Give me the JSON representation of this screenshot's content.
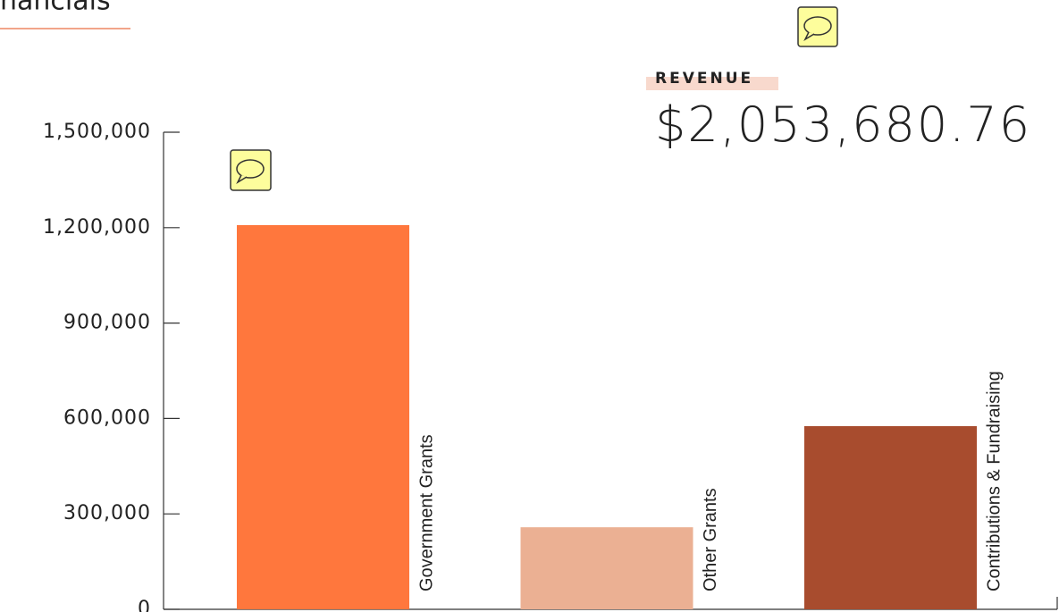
{
  "header": {
    "title": "nancials"
  },
  "revenue": {
    "label": "REVENUE",
    "amount": "$2,053,680.76"
  },
  "chart_data": {
    "type": "bar",
    "categories": [
      "Government Grants",
      "Other Grants",
      "Contributions & Fundraising"
    ],
    "values": [
      1208000,
      258000,
      576000
    ],
    "colors": [
      "#ff773d",
      "#ebb093",
      "#a84c2e"
    ],
    "ylim": [
      0,
      1500000
    ],
    "yticks": [
      0,
      {
        "value": 300000,
        "label": "300,000"
      },
      {
        "value": 600000,
        "label": "600,000"
      },
      {
        "value": 900000,
        "label": "900,000"
      },
      {
        "value": 1200000,
        "label": "1,200,000"
      },
      {
        "value": 1500000,
        "label": "1,500,000"
      }
    ],
    "grid": false
  }
}
